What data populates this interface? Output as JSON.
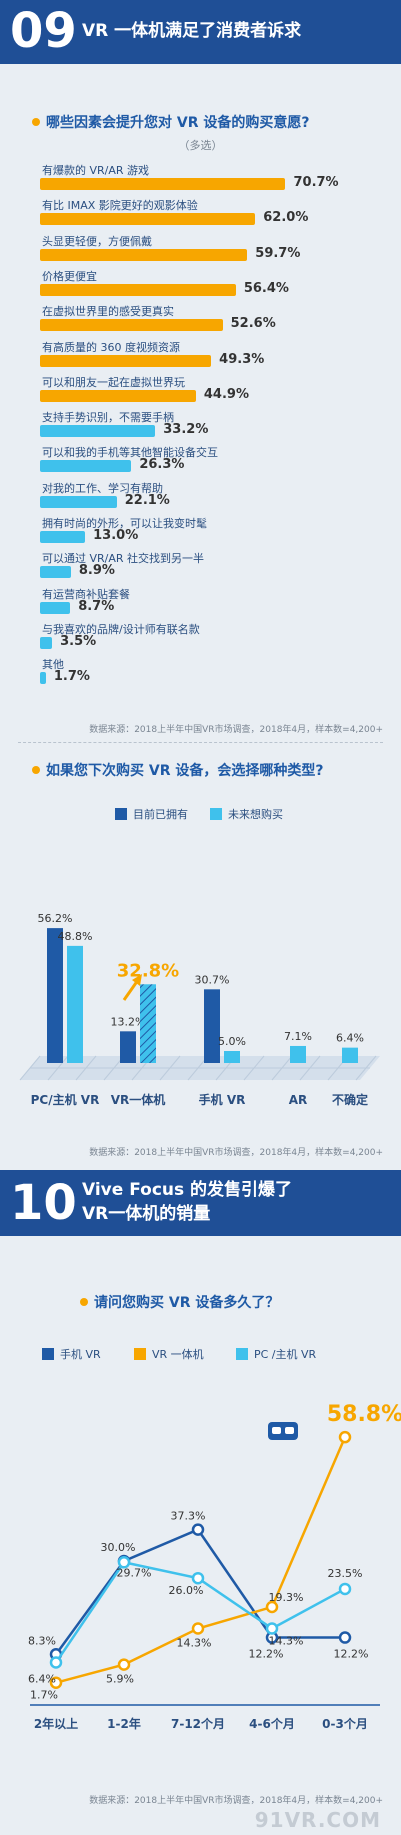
{
  "colors": {
    "blue_dark": "#1f5aa6",
    "blue_light": "#3fc1ec",
    "orange": "#f7a600",
    "banner": "#1f4f96"
  },
  "section9": {
    "number": "09",
    "title": "VR 一体机满足了消费者诉求"
  },
  "q1": {
    "question": "哪些因素会提升您对 VR 设备的购买意愿?",
    "note": "（多选）"
  },
  "q2": {
    "question": "如果您下次购买 VR 设备，会选择哪种类型?",
    "legend": [
      "目前已拥有",
      "未来想购买"
    ]
  },
  "section10": {
    "number": "10",
    "title_line1": "Vive Focus 的发售引爆了",
    "title_line2": "VR一体机的销量"
  },
  "q3": {
    "question": "请问您购买 VR 设备多久了？",
    "legend": [
      "手机 VR",
      "VR 一体机",
      "PC /主机 VR"
    ]
  },
  "source": "数据来源：2018上半年中国VR市场调查，2018年4月，样本数=4,200+",
  "watermark": "91VR.COM",
  "chart_data": [
    {
      "type": "bar",
      "orientation": "horizontal",
      "categories": [
        "有爆款的 VR/AR 游戏",
        "有比 IMAX 影院更好的观影体验",
        "头显更轻便，方便佩戴",
        "价格更便宜",
        "在虚拟世界里的感受更真实",
        "有高质量的 360 度视频资源",
        "可以和朋友一起在虚拟世界玩",
        "支持手势识别，不需要手柄",
        "可以和我的手机等其他智能设备交互",
        "对我的工作、学习有帮助",
        "拥有时尚的外形，可以让我变时髦",
        "可以通过 VR/AR 社交找到另一半",
        "有运营商补贴套餐",
        "与我喜欢的品牌/设计师有联名款",
        "其他"
      ],
      "values": [
        70.7,
        62.0,
        59.7,
        56.4,
        52.6,
        49.3,
        44.9,
        33.2,
        26.3,
        22.1,
        13.0,
        8.9,
        8.7,
        3.5,
        1.7
      ],
      "value_labels": [
        "70.7%",
        "62.0%",
        "59.7%",
        "56.4%",
        "52.6%",
        "49.3%",
        "44.9%",
        "33.2%",
        "26.3%",
        "22.1%",
        "13.0%",
        "8.9%",
        "8.7%",
        "3.5%",
        "1.7%"
      ],
      "unit": "%"
    },
    {
      "type": "bar",
      "categories": [
        "PC/主机 VR",
        "VR一体机",
        "手机 VR",
        "AR",
        "不确定"
      ],
      "series": [
        {
          "name": "目前已拥有",
          "values": [
            56.2,
            13.2,
            30.7,
            null,
            null
          ],
          "labels": [
            "56.2%",
            "13.2%",
            "30.7%",
            "",
            ""
          ]
        },
        {
          "name": "未来想购买",
          "values": [
            48.8,
            32.8,
            5.0,
            7.1,
            6.4
          ],
          "labels": [
            "48.8%",
            "32.8%",
            "5.0%",
            "7.1%",
            "6.4%"
          ]
        }
      ],
      "ylim": [
        0,
        60
      ]
    },
    {
      "type": "line",
      "categories": [
        "2年以上",
        "1-2年",
        "7-12个月",
        "4-6个月",
        "0-3个月"
      ],
      "series": [
        {
          "name": "手机 VR",
          "values": [
            8.3,
            30.0,
            37.3,
            12.2,
            12.2
          ],
          "labels": [
            "8.3%",
            "30.0%",
            "37.3%",
            "12.2%",
            "12.2%"
          ]
        },
        {
          "name": "VR 一体机",
          "values": [
            1.7,
            5.9,
            14.3,
            19.3,
            58.8
          ],
          "labels": [
            "1.7%",
            "5.9%",
            "14.3%",
            "19.3%",
            "58.8%"
          ]
        },
        {
          "name": "PC /主机 VR",
          "values": [
            6.4,
            29.7,
            26.0,
            14.3,
            23.5
          ],
          "labels": [
            "6.4%",
            "29.7%",
            "26.0%",
            "14.3%",
            "23.5%"
          ]
        }
      ],
      "ylim": [
        0,
        62
      ]
    }
  ]
}
